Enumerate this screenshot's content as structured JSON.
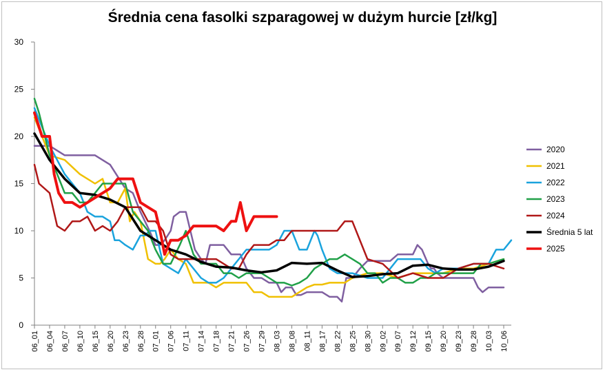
{
  "chart_data": {
    "type": "line",
    "title": "Średnia cena fasolki szparagowej w dużym hurcie [zł/kg]",
    "xlabel": "",
    "ylabel": "",
    "ylim": [
      0,
      30
    ],
    "yticks": [
      0,
      5,
      10,
      15,
      20,
      25,
      30
    ],
    "grid": false,
    "legend_position": "right",
    "x_ticks": [
      "06_01",
      "06_04",
      "06_07",
      "06_10",
      "06_15",
      "06_20",
      "06_23",
      "06_28",
      "07_01",
      "07_06",
      "07_11",
      "07_14",
      "07_18",
      "07_21",
      "07_26",
      "07_29",
      "08_03",
      "08_08",
      "08_11",
      "08_17",
      "08_22",
      "08_25",
      "08_30",
      "09_02",
      "09_07",
      "09_12",
      "09_15",
      "09_20",
      "09_23",
      "09_28",
      "10_03",
      "10_06"
    ],
    "series": [
      {
        "name": "2020",
        "color": "#7f5fa0",
        "width": 2.5,
        "x": [
          0,
          1,
          2,
          3,
          4,
          5,
          6,
          6.5,
          7,
          7.3,
          7.6,
          8,
          8.3,
          8.6,
          9,
          9.2,
          9.6,
          10,
          10.3,
          10.6,
          11,
          11.3,
          11.6,
          12,
          12.5,
          13,
          13.3,
          13.6,
          14,
          14.5,
          15,
          15.5,
          16,
          16.3,
          16.6,
          17,
          17.3,
          17.6,
          18,
          18.5,
          19,
          19.5,
          20,
          20.3,
          20.6,
          21,
          21.5,
          22,
          22.5,
          23,
          23.5,
          24,
          24.5,
          25,
          25.3,
          25.6,
          26,
          26.2,
          26.4,
          26.6,
          27,
          27.5,
          28,
          28.5,
          29,
          29.3,
          29.6,
          30,
          30.5,
          31
        ],
        "y": [
          19,
          19,
          18,
          18,
          18,
          17,
          14.5,
          14,
          12,
          11,
          10,
          8.5,
          8.5,
          9,
          10,
          11.5,
          12,
          12,
          10,
          8,
          7,
          6.5,
          8.5,
          8.5,
          8.5,
          7.5,
          7.5,
          7.5,
          6,
          5,
          5,
          4.5,
          4.5,
          3.5,
          4,
          4,
          3.2,
          3.2,
          3.5,
          3.5,
          3.5,
          3,
          3,
          2.5,
          5,
          5,
          6,
          6.8,
          6.8,
          6.8,
          6.8,
          7.5,
          7.5,
          7.5,
          8.5,
          8,
          6.5,
          6,
          6,
          5.5,
          5,
          5,
          5,
          5,
          5,
          4,
          3.5,
          4,
          4,
          4
        ]
      },
      {
        "name": "2021",
        "color": "#f0c000",
        "width": 2.5,
        "x": [
          0,
          1,
          2,
          3,
          4,
          4.5,
          5,
          5.5,
          6,
          6.3,
          6.6,
          7,
          7.5,
          8,
          8.3,
          8.6,
          9,
          9.5,
          10,
          10.5,
          11,
          11.5,
          12,
          12.5,
          13,
          13.5,
          14,
          14.5,
          15,
          15.5,
          16,
          16.5,
          17,
          17.5,
          18,
          18.5,
          19,
          19.5,
          20,
          20.5,
          21,
          22,
          23,
          24,
          25,
          26,
          27,
          28,
          29,
          30,
          31
        ],
        "y": [
          22,
          18,
          17.5,
          16,
          15,
          15.5,
          13,
          13,
          14.5,
          11,
          12,
          11,
          7,
          6.5,
          6.5,
          7,
          8,
          7,
          6.5,
          4.5,
          4.5,
          4.5,
          4,
          4.5,
          4.5,
          4.5,
          4.5,
          3.5,
          3.5,
          3,
          3,
          3,
          3,
          3.5,
          4,
          4.3,
          4.3,
          4.5,
          4.5,
          4.5,
          5,
          5.5,
          5.5,
          5,
          5.5,
          5.5,
          5.5,
          6,
          6,
          6.5,
          7
        ]
      },
      {
        "name": "2022",
        "color": "#1aa3dd",
        "width": 2.5,
        "x": [
          0,
          1,
          2,
          2.5,
          3,
          3.5,
          4,
          4.5,
          5,
          5.3,
          5.6,
          6,
          6.5,
          7,
          7.3,
          7.6,
          8,
          8.5,
          9,
          9.5,
          10,
          10.5,
          11,
          11.5,
          12,
          12.5,
          13,
          13.5,
          14,
          14.5,
          15,
          15.5,
          16,
          16.5,
          17,
          17.5,
          18,
          18.5,
          18.7,
          19,
          19.5,
          20,
          20.5,
          21,
          22,
          22.5,
          23,
          23.5,
          24,
          24.5,
          25,
          25.5,
          26,
          26.5,
          27,
          28,
          29,
          30,
          30.5,
          31,
          31.5
        ],
        "y": [
          23,
          19,
          16,
          15,
          14,
          12,
          11.5,
          11.5,
          11,
          9,
          9,
          8.5,
          8,
          9.5,
          9.5,
          10,
          10,
          6.5,
          6,
          5.5,
          7,
          6,
          5,
          4.5,
          4.5,
          5,
          6,
          7,
          8,
          8,
          8,
          8,
          8.5,
          10,
          10,
          8,
          8,
          10,
          9.5,
          8,
          6,
          5.5,
          5.5,
          5.5,
          5,
          5,
          5,
          6,
          7,
          7,
          7,
          7,
          6,
          5.5,
          6,
          6,
          6.5,
          6.5,
          8,
          8,
          9
        ]
      },
      {
        "name": "2023",
        "color": "#20a048",
        "width": 2.5,
        "x": [
          0,
          0.3,
          1,
          1.5,
          2,
          2.5,
          3,
          3.5,
          4,
          4.5,
          5,
          5.5,
          6,
          6.5,
          7,
          7.5,
          8,
          8.5,
          9,
          9.3,
          9.6,
          10,
          10.5,
          11,
          11.5,
          12,
          12.5,
          13,
          13.5,
          14,
          14.5,
          15,
          15.5,
          16,
          16.5,
          17,
          17.5,
          18,
          18.5,
          19,
          19.5,
          20,
          20.5,
          21,
          21.5,
          22,
          22.5,
          23,
          23.5,
          24,
          24.5,
          25,
          25.5,
          26,
          26.5,
          27,
          27.5,
          28,
          28.5,
          29,
          29.5,
          30,
          31
        ],
        "y": [
          24,
          22.5,
          18,
          16,
          14,
          14,
          13,
          13,
          14,
          15,
          15,
          15,
          15,
          12,
          11,
          10,
          8,
          6.5,
          6.5,
          7.5,
          8.5,
          10,
          7.5,
          6.5,
          6.5,
          6.5,
          5.5,
          5.5,
          5,
          5.5,
          5.5,
          5.5,
          5,
          4.5,
          4.5,
          4.2,
          4.5,
          5,
          6,
          6.5,
          7,
          7,
          7.5,
          7,
          6.5,
          5.5,
          5.5,
          4.5,
          5,
          5,
          4.5,
          4.5,
          5,
          5,
          5.5,
          5.5,
          5.5,
          5.5,
          5.5,
          5.5,
          6.5,
          6.5,
          7
        ]
      },
      {
        "name": "2024",
        "color": "#b01818",
        "width": 2.5,
        "x": [
          0,
          0.3,
          1,
          1.5,
          2,
          2.5,
          3,
          3.5,
          4,
          4.5,
          5,
          5.5,
          6,
          6.5,
          7,
          7.5,
          8,
          8.5,
          9,
          9.5,
          10,
          10.5,
          11,
          11.5,
          12,
          12.5,
          13,
          13.5,
          14,
          14.5,
          15,
          15.5,
          16,
          16.5,
          17,
          17.5,
          18,
          18.5,
          19,
          19.5,
          20,
          20.5,
          21,
          22,
          23,
          24,
          25,
          26,
          27,
          28,
          29,
          30,
          31
        ],
        "y": [
          17,
          15,
          14,
          10.5,
          10,
          11,
          11,
          11.5,
          10,
          10.5,
          10,
          11,
          12.5,
          12.5,
          12.5,
          11,
          11,
          10,
          7.5,
          7,
          7,
          7,
          7,
          7,
          7,
          6.5,
          6,
          6,
          7.5,
          8.5,
          8.5,
          8.5,
          9,
          9,
          10,
          10,
          10,
          10,
          10,
          10,
          10,
          11,
          11,
          7,
          6.5,
          5,
          5.5,
          5,
          5,
          6,
          6.5,
          6.5,
          6
        ]
      },
      {
        "name": "Średnia 5 lat",
        "color": "#000000",
        "width": 3.5,
        "x": [
          0,
          1,
          2,
          3,
          4,
          5,
          6,
          7,
          8,
          9,
          10,
          11,
          12,
          13,
          14,
          15,
          16,
          17,
          18,
          19,
          20,
          21,
          22,
          23,
          24,
          25,
          26,
          27,
          28,
          29,
          30,
          31
        ],
        "y": [
          20.3,
          17.5,
          15.5,
          14,
          13.8,
          13.3,
          12.5,
          10,
          9,
          8,
          7.5,
          6.7,
          6.2,
          6.1,
          5.8,
          5.6,
          5.8,
          6.6,
          6.5,
          6.6,
          5.8,
          5.1,
          5.2,
          5.4,
          5.5,
          6.3,
          6.4,
          6,
          5.9,
          5.9,
          6.2,
          6.8
        ]
      },
      {
        "name": "2025",
        "color": "#ee1111",
        "width": 4,
        "x": [
          0,
          0.5,
          1,
          1.3,
          1.6,
          2,
          2.5,
          3,
          3.5,
          4,
          4.5,
          5,
          5.5,
          6,
          6.5,
          7,
          7.5,
          8,
          8.3,
          8.6,
          9,
          9.5,
          10,
          10.5,
          11,
          11.5,
          12,
          12.5,
          13,
          13.3,
          13.6,
          14,
          14.5,
          15,
          15.5,
          16
        ],
        "y": [
          22.5,
          20,
          20,
          16,
          14,
          13,
          13,
          12.5,
          13,
          13.5,
          14,
          14.5,
          15.5,
          15.5,
          15.5,
          13,
          12.5,
          12,
          10,
          7.5,
          9,
          9,
          9.5,
          10.5,
          10.5,
          10.5,
          10.5,
          10,
          11,
          11,
          13,
          10,
          11.5,
          11.5,
          11.5,
          11.5
        ]
      }
    ]
  }
}
